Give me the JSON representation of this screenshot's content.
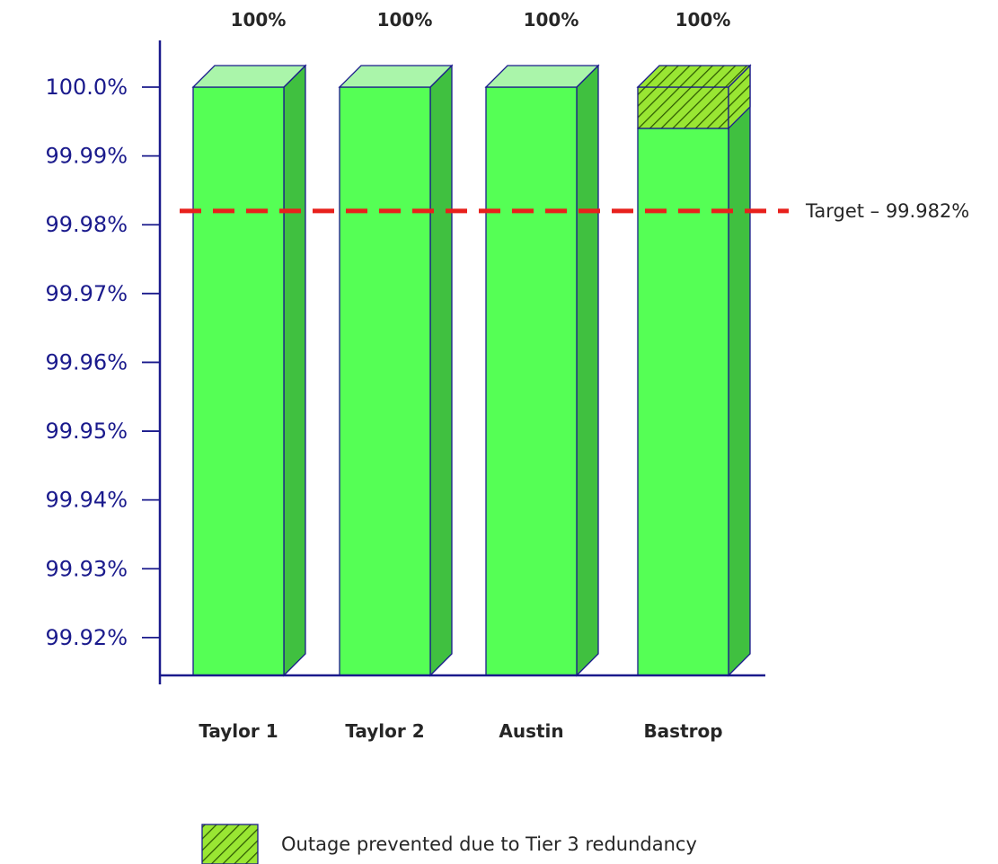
{
  "chart_data": {
    "type": "bar",
    "categories": [
      "Taylor 1",
      "Taylor 2",
      "Austin",
      "Bastrop"
    ],
    "series": [
      {
        "values": [
          100.0,
          100.0,
          100.0,
          99.994
        ]
      },
      {
        "name": "Outage prevented due to Tier 3 redundancy",
        "values": [
          0,
          0,
          0,
          0.006
        ]
      }
    ],
    "data_labels": [
      "100%",
      "100%",
      "100%",
      "100%"
    ],
    "y_ticks": [
      "100.0%",
      "99.99%",
      "99.98%",
      "99.97%",
      "99.96%",
      "99.95%",
      "99.94%",
      "99.93%",
      "99.92%"
    ],
    "y_tick_values": [
      100.0,
      99.99,
      99.98,
      99.97,
      99.96,
      99.95,
      99.94,
      99.93,
      99.92
    ],
    "ylim": [
      99.9145,
      100.0
    ],
    "target": {
      "value": 99.982,
      "label": "Target – 99.982%"
    },
    "legend": {
      "label": "Outage prevented due to Tier 3 redundancy",
      "position": "bottom"
    },
    "grid": false,
    "colors": {
      "bar_front": "#55ff55",
      "bar_side": "#40c040",
      "bar_top": "#aaf5aa",
      "hatch_fill": "#99e633",
      "outline": "#1a1a8c",
      "axis": "#1a1a8c",
      "target_line": "#e8201c",
      "ytick_text": "#1a1a8c"
    }
  }
}
